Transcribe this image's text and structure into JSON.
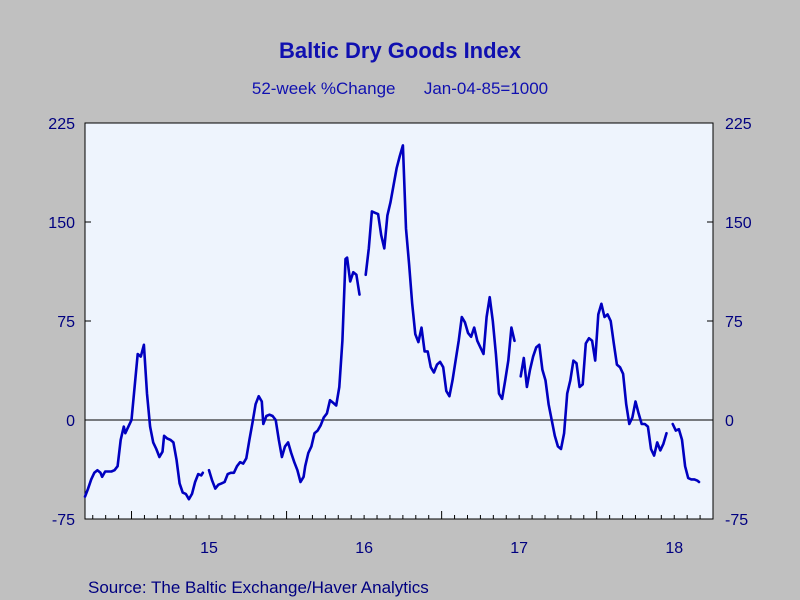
{
  "chart_data": {
    "type": "line",
    "title": "Baltic Dry Goods Index",
    "subtitle": "52-week %Change      Jan-04-85=1000",
    "source": "Source:  The Baltic Exchange/Haver Analytics",
    "ylim": [
      -75,
      225
    ],
    "yticks": [
      -75,
      0,
      75,
      150,
      225
    ],
    "xlim": [
      2014.7,
      2018.75
    ],
    "xtick_labels": [
      {
        "label": "15",
        "x": 2015.0
      },
      {
        "label": "16",
        "x": 2016.0
      },
      {
        "label": "17",
        "x": 2017.0
      },
      {
        "label": "18",
        "x": 2018.0
      }
    ],
    "zero_line": true,
    "background_color": "#eef4fd",
    "line_color": "#0000c0",
    "series": [
      {
        "segments": [
          [
            [
              2014.7,
              -58
            ],
            [
              2014.72,
              -52
            ],
            [
              2014.74,
              -45
            ],
            [
              2014.76,
              -40
            ],
            [
              2014.78,
              -38
            ],
            [
              2014.8,
              -40
            ],
            [
              2014.81,
              -43
            ],
            [
              2014.83,
              -39
            ],
            [
              2014.85,
              -39
            ],
            [
              2014.87,
              -39
            ],
            [
              2014.89,
              -38
            ],
            [
              2014.91,
              -35
            ],
            [
              2014.93,
              -15
            ],
            [
              2014.95,
              -5
            ],
            [
              2014.96,
              -10
            ],
            [
              2014.98,
              -5
            ],
            [
              2015.0,
              0
            ],
            [
              2015.02,
              25
            ],
            [
              2015.04,
              50
            ],
            [
              2015.06,
              48
            ],
            [
              2015.08,
              57
            ],
            [
              2015.1,
              20
            ],
            [
              2015.12,
              -5
            ],
            [
              2015.14,
              -17
            ],
            [
              2015.16,
              -22
            ],
            [
              2015.18,
              -28
            ],
            [
              2015.2,
              -24
            ],
            [
              2015.21,
              -12
            ],
            [
              2015.23,
              -14
            ],
            [
              2015.25,
              -15
            ],
            [
              2015.27,
              -17
            ],
            [
              2015.29,
              -30
            ],
            [
              2015.31,
              -48
            ],
            [
              2015.33,
              -55
            ],
            [
              2015.35,
              -56
            ],
            [
              2015.37,
              -60
            ],
            [
              2015.39,
              -56
            ],
            [
              2015.41,
              -47
            ],
            [
              2015.43,
              -41
            ],
            [
              2015.45,
              -42
            ],
            [
              2015.46,
              -40
            ]
          ],
          [
            [
              2015.5,
              -38
            ],
            [
              2015.52,
              -46
            ],
            [
              2015.54,
              -52
            ],
            [
              2015.56,
              -49
            ],
            [
              2015.58,
              -48
            ],
            [
              2015.6,
              -47
            ],
            [
              2015.62,
              -41
            ],
            [
              2015.64,
              -40
            ],
            [
              2015.66,
              -40
            ],
            [
              2015.68,
              -35
            ],
            [
              2015.7,
              -32
            ],
            [
              2015.72,
              -33
            ],
            [
              2015.74,
              -29
            ],
            [
              2015.76,
              -15
            ],
            [
              2015.78,
              -2
            ],
            [
              2015.8,
              12
            ],
            [
              2015.82,
              18
            ],
            [
              2015.84,
              14
            ],
            [
              2015.85,
              -3
            ],
            [
              2015.87,
              3
            ],
            [
              2015.89,
              4
            ],
            [
              2015.91,
              3
            ],
            [
              2015.93,
              0
            ],
            [
              2015.95,
              -15
            ],
            [
              2015.97,
              -28
            ],
            [
              2015.99,
              -20
            ],
            [
              2016.01,
              -17
            ],
            [
              2016.03,
              -25
            ],
            [
              2016.05,
              -32
            ],
            [
              2016.07,
              -38
            ],
            [
              2016.09,
              -47
            ],
            [
              2016.11,
              -43
            ],
            [
              2016.12,
              -35
            ],
            [
              2016.14,
              -25
            ],
            [
              2016.16,
              -20
            ],
            [
              2016.18,
              -10
            ],
            [
              2016.2,
              -8
            ],
            [
              2016.22,
              -4
            ],
            [
              2016.24,
              2
            ],
            [
              2016.26,
              5
            ],
            [
              2016.28,
              15
            ],
            [
              2016.3,
              13
            ],
            [
              2016.32,
              11
            ],
            [
              2016.34,
              25
            ],
            [
              2016.36,
              60
            ],
            [
              2016.38,
              122
            ],
            [
              2016.39,
              123
            ],
            [
              2016.41,
              105
            ],
            [
              2016.43,
              112
            ],
            [
              2016.45,
              110
            ],
            [
              2016.47,
              95
            ]
          ],
          [
            [
              2016.51,
              110
            ],
            [
              2016.53,
              130
            ],
            [
              2016.55,
              158
            ],
            [
              2016.57,
              157
            ],
            [
              2016.59,
              156
            ],
            [
              2016.61,
              140
            ],
            [
              2016.63,
              130
            ],
            [
              2016.65,
              155
            ],
            [
              2016.67,
              165
            ],
            [
              2016.69,
              178
            ],
            [
              2016.71,
              191
            ],
            [
              2016.73,
              200
            ],
            [
              2016.75,
              208
            ],
            [
              2016.77,
              145
            ],
            [
              2016.79,
              118
            ],
            [
              2016.81,
              88
            ],
            [
              2016.83,
              65
            ],
            [
              2016.85,
              59
            ],
            [
              2016.87,
              70
            ],
            [
              2016.89,
              52
            ],
            [
              2016.91,
              52
            ],
            [
              2016.93,
              40
            ],
            [
              2016.95,
              36
            ],
            [
              2016.97,
              42
            ],
            [
              2016.99,
              44
            ],
            [
              2017.01,
              40
            ],
            [
              2017.03,
              22
            ],
            [
              2017.05,
              18
            ],
            [
              2017.07,
              30
            ],
            [
              2017.09,
              45
            ],
            [
              2017.11,
              60
            ],
            [
              2017.13,
              78
            ],
            [
              2017.15,
              74
            ],
            [
              2017.17,
              66
            ],
            [
              2017.19,
              63
            ],
            [
              2017.21,
              70
            ],
            [
              2017.23,
              60
            ],
            [
              2017.25,
              55
            ],
            [
              2017.27,
              50
            ],
            [
              2017.29,
              78
            ],
            [
              2017.31,
              93
            ],
            [
              2017.33,
              75
            ],
            [
              2017.35,
              50
            ],
            [
              2017.37,
              20
            ],
            [
              2017.39,
              16
            ],
            [
              2017.41,
              30
            ],
            [
              2017.43,
              45
            ],
            [
              2017.45,
              70
            ],
            [
              2017.47,
              60
            ]
          ],
          [
            [
              2017.51,
              33
            ],
            [
              2017.53,
              47
            ],
            [
              2017.55,
              25
            ],
            [
              2017.57,
              38
            ],
            [
              2017.59,
              48
            ],
            [
              2017.61,
              55
            ],
            [
              2017.63,
              57
            ],
            [
              2017.65,
              38
            ],
            [
              2017.67,
              30
            ],
            [
              2017.69,
              12
            ],
            [
              2017.71,
              0
            ],
            [
              2017.73,
              -12
            ],
            [
              2017.75,
              -20
            ],
            [
              2017.77,
              -22
            ],
            [
              2017.79,
              -10
            ],
            [
              2017.81,
              20
            ],
            [
              2017.83,
              30
            ],
            [
              2017.85,
              45
            ],
            [
              2017.87,
              43
            ],
            [
              2017.89,
              25
            ],
            [
              2017.91,
              27
            ],
            [
              2017.93,
              58
            ],
            [
              2017.95,
              62
            ],
            [
              2017.97,
              60
            ],
            [
              2017.99,
              45
            ],
            [
              2018.01,
              80
            ],
            [
              2018.03,
              88
            ],
            [
              2018.05,
              78
            ],
            [
              2018.07,
              80
            ],
            [
              2018.09,
              75
            ],
            [
              2018.11,
              58
            ],
            [
              2018.13,
              42
            ],
            [
              2018.15,
              40
            ],
            [
              2018.17,
              35
            ],
            [
              2018.19,
              12
            ],
            [
              2018.21,
              -3
            ],
            [
              2018.23,
              2
            ],
            [
              2018.25,
              14
            ],
            [
              2018.27,
              5
            ],
            [
              2018.29,
              -3
            ],
            [
              2018.31,
              -3
            ],
            [
              2018.33,
              -5
            ],
            [
              2018.35,
              -22
            ],
            [
              2018.37,
              -27
            ],
            [
              2018.39,
              -17
            ],
            [
              2018.41,
              -23
            ],
            [
              2018.43,
              -18
            ],
            [
              2018.45,
              -10
            ]
          ],
          [
            [
              2018.49,
              -3
            ],
            [
              2018.51,
              -8
            ],
            [
              2018.53,
              -7
            ],
            [
              2018.55,
              -15
            ],
            [
              2018.57,
              -35
            ],
            [
              2018.59,
              -44
            ],
            [
              2018.61,
              -45
            ],
            [
              2018.63,
              -45
            ],
            [
              2018.65,
              -46
            ],
            [
              2018.66,
              -47
            ]
          ]
        ]
      }
    ]
  }
}
